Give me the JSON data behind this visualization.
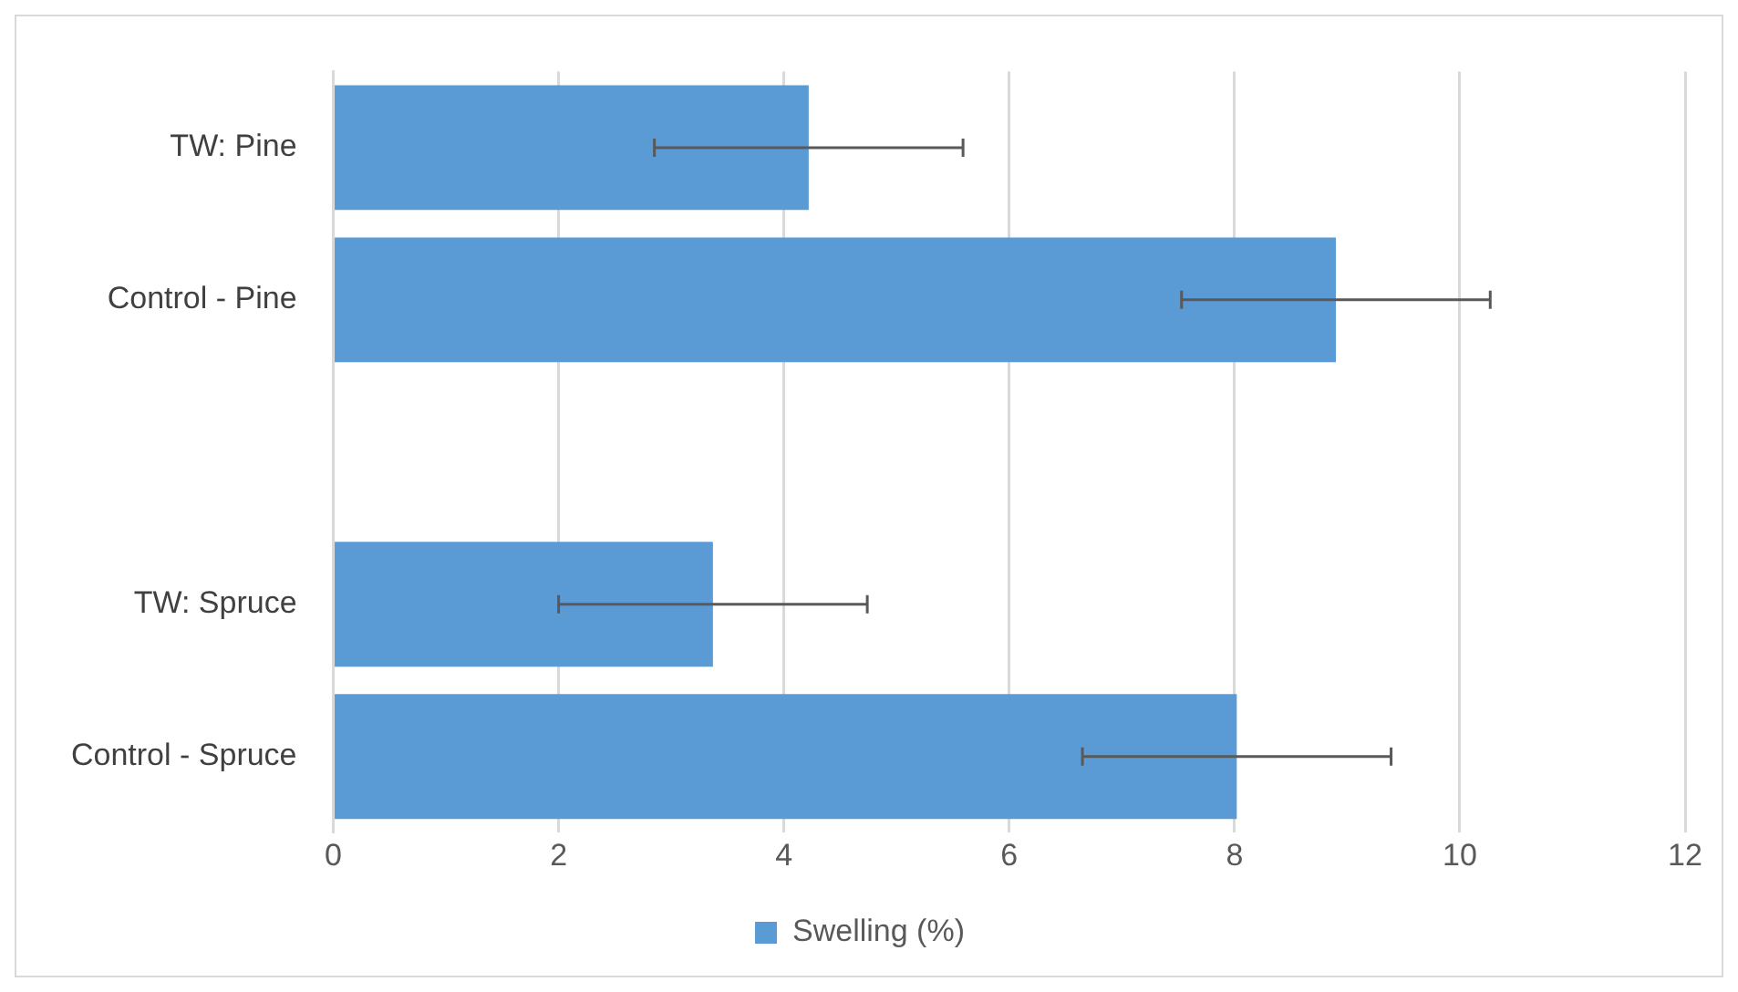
{
  "chart_data": {
    "type": "bar",
    "orientation": "horizontal",
    "categories": [
      "TW: Pine",
      "Control - Pine",
      null,
      "TW: Spruce",
      "Control - Spruce"
    ],
    "series": [
      {
        "name": "Swelling (%)",
        "color": "#5b9bd5",
        "values": [
          4.22,
          8.9,
          null,
          3.37,
          8.02
        ],
        "errors": [
          1.37,
          1.37,
          null,
          1.37,
          1.37
        ]
      }
    ],
    "xlim": [
      0,
      12
    ],
    "xticks": [
      0,
      2,
      4,
      6,
      8,
      10,
      12
    ],
    "grid": "x",
    "legend": "bottom"
  }
}
